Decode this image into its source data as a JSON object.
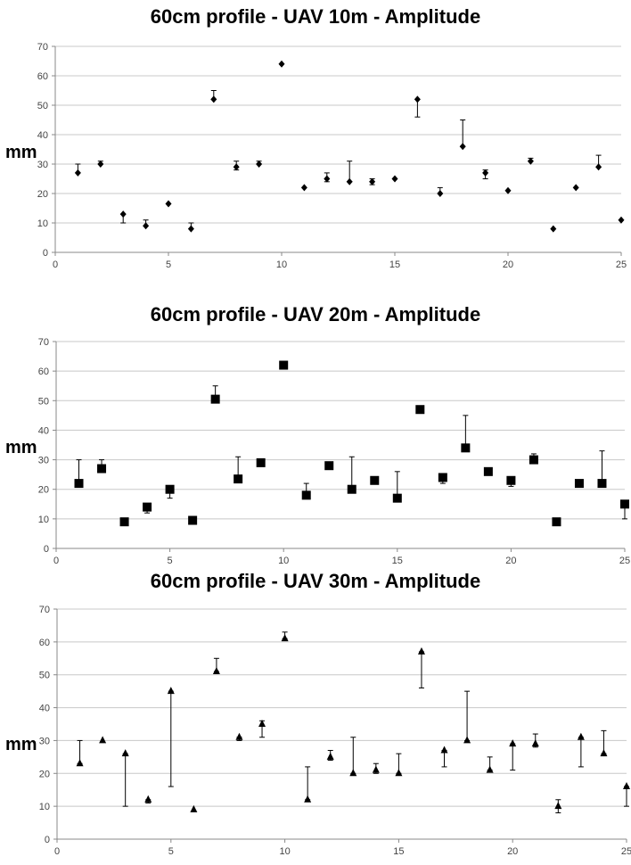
{
  "chart_data": [
    {
      "type": "scatter",
      "title": "60cm profile - UAV 10m - Amplitude",
      "xlabel": "",
      "ylabel": "mm",
      "marker": "diamond",
      "xlim": [
        0,
        25
      ],
      "ylim": [
        0,
        70
      ],
      "xticks": [
        0,
        5,
        10,
        15,
        20,
        25
      ],
      "yticks": [
        0,
        10,
        20,
        30,
        40,
        50,
        60,
        70
      ],
      "grid": "horizontal",
      "x": [
        1,
        2,
        3,
        4,
        5,
        6,
        7,
        8,
        9,
        10,
        11,
        12,
        13,
        14,
        15,
        16,
        17,
        18,
        19,
        20,
        21,
        22,
        23,
        24,
        25
      ],
      "y": [
        27,
        30,
        13,
        9,
        16.5,
        8,
        52,
        29,
        30,
        64,
        22,
        25,
        24,
        24,
        25,
        52,
        20,
        36,
        27,
        21,
        31,
        8,
        22,
        29,
        11
      ],
      "error_high": [
        30,
        31,
        13,
        11,
        16.5,
        10,
        55,
        31,
        31,
        64,
        22,
        27,
        31,
        25,
        25,
        52,
        22,
        45,
        28,
        21,
        32,
        8,
        22,
        33,
        11
      ],
      "error_low": [
        27,
        30,
        10,
        9,
        16.5,
        8,
        52,
        28,
        30,
        64,
        22,
        24,
        24,
        23,
        25,
        46,
        20,
        36,
        25,
        21,
        31,
        8,
        22,
        29,
        11
      ]
    },
    {
      "type": "scatter",
      "title": "60cm profile - UAV 20m - Amplitude",
      "xlabel": "",
      "ylabel": "mm",
      "marker": "square",
      "xlim": [
        0,
        25
      ],
      "ylim": [
        0,
        70
      ],
      "xticks": [
        0,
        5,
        10,
        15,
        20,
        25
      ],
      "yticks": [
        0,
        10,
        20,
        30,
        40,
        50,
        60,
        70
      ],
      "grid": "horizontal",
      "x": [
        1,
        2,
        3,
        4,
        5,
        6,
        7,
        8,
        9,
        10,
        11,
        12,
        13,
        14,
        15,
        16,
        17,
        18,
        19,
        20,
        21,
        22,
        23,
        24,
        25
      ],
      "y": [
        22,
        27,
        9,
        14,
        20,
        9.5,
        50.5,
        23.5,
        29,
        62,
        18,
        28,
        20,
        23,
        17,
        47,
        24,
        34,
        26,
        23,
        30,
        9,
        22,
        22,
        15
      ],
      "error_high": [
        30,
        30,
        9,
        14,
        20,
        9.5,
        55,
        31,
        30,
        62,
        22,
        28,
        31,
        23,
        26,
        47,
        24,
        45,
        26,
        23,
        32,
        9,
        22,
        33,
        15
      ],
      "error_low": [
        22,
        27,
        9,
        12,
        17,
        9.5,
        50.5,
        23.5,
        28,
        62,
        18,
        28,
        20,
        23,
        17,
        47,
        22,
        34,
        26,
        21,
        29,
        9,
        22,
        22,
        10
      ]
    },
    {
      "type": "scatter",
      "title": "60cm profile - UAV 30m - Amplitude",
      "xlabel": "",
      "ylabel": "mm",
      "marker": "triangle",
      "xlim": [
        0,
        25
      ],
      "ylim": [
        0,
        70
      ],
      "xticks": [
        0,
        5,
        10,
        15,
        20,
        25
      ],
      "yticks": [
        0,
        10,
        20,
        30,
        40,
        50,
        60,
        70
      ],
      "grid": "horizontal",
      "x": [
        1,
        2,
        3,
        4,
        5,
        6,
        7,
        8,
        9,
        10,
        11,
        12,
        13,
        14,
        15,
        16,
        17,
        18,
        19,
        20,
        21,
        22,
        23,
        24,
        25
      ],
      "y": [
        23,
        30,
        26,
        12,
        45,
        9,
        51,
        31,
        35,
        61,
        12,
        25,
        20,
        21,
        20,
        57,
        27,
        30,
        21,
        29,
        29,
        10,
        31,
        26,
        16
      ],
      "error_high": [
        30,
        30,
        26,
        12,
        45,
        9,
        55,
        31,
        36,
        63,
        22,
        27,
        31,
        23,
        26,
        57,
        27,
        45,
        25,
        29,
        32,
        12,
        31,
        33,
        16
      ],
      "error_low": [
        23,
        30,
        10,
        11,
        16,
        9,
        51,
        30,
        31,
        61,
        12,
        24,
        20,
        20,
        20,
        46,
        22,
        30,
        21,
        21,
        28,
        8,
        22,
        26,
        10
      ]
    }
  ]
}
